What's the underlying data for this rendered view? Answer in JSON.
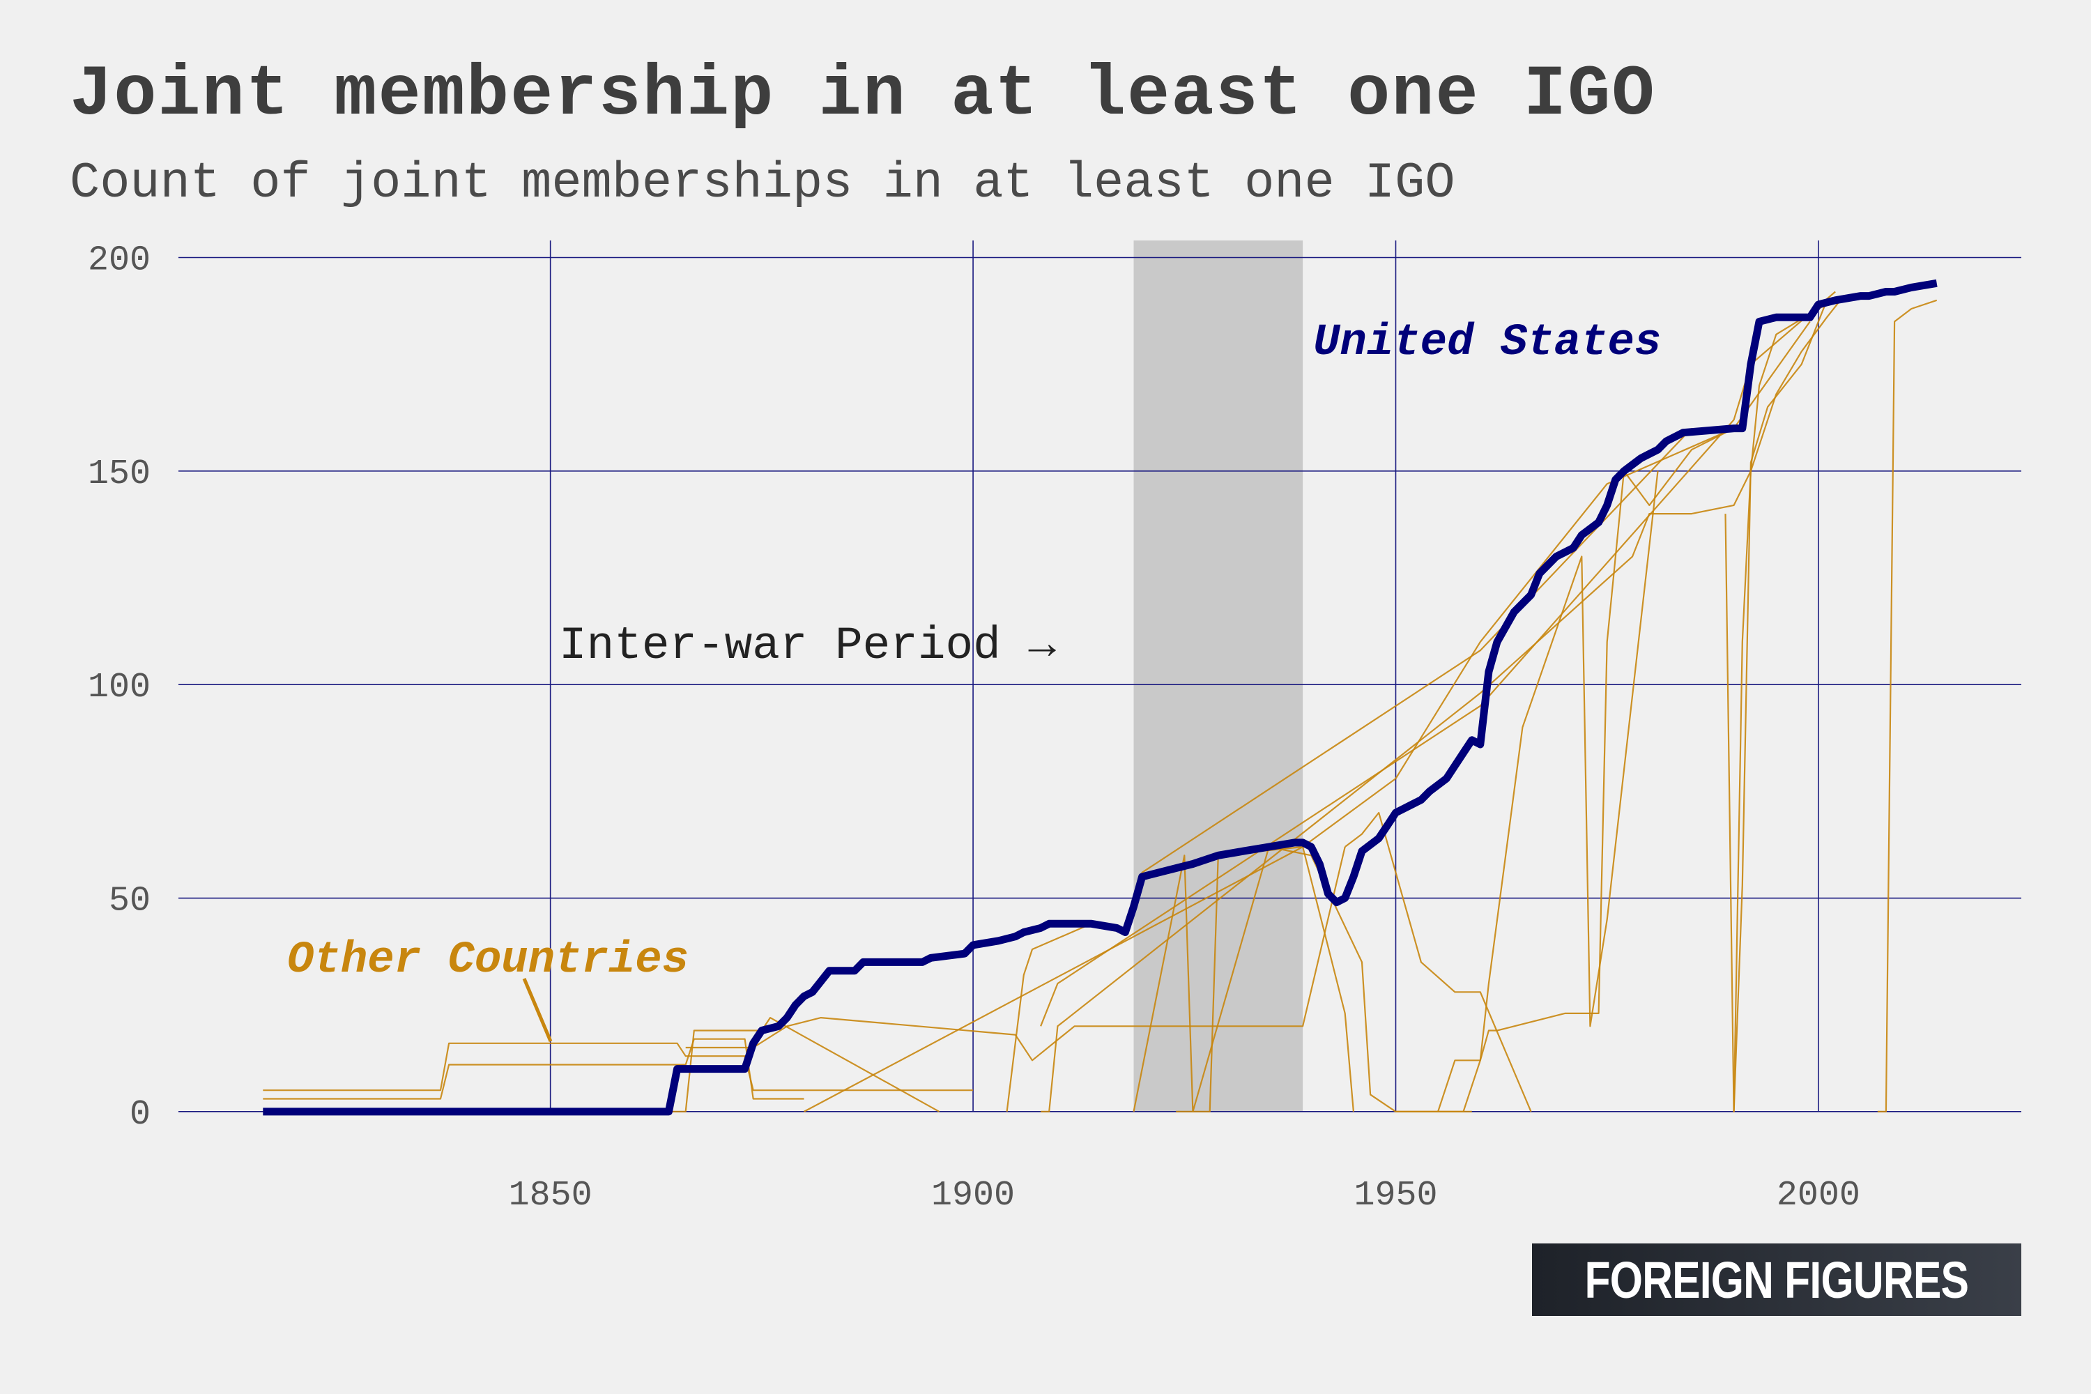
{
  "header": {
    "title": "Joint membership in at least one IGO",
    "subtitle": "Count of joint memberships in at least one IGO"
  },
  "brand": {
    "label": "FOREIGN FIGURES"
  },
  "colors": {
    "us_line": "#00007a",
    "other_lines": "#c8860e",
    "grid": "#1a1a80",
    "shade": "#c9c9c9",
    "background": "#f0f0f0"
  },
  "chart_data": {
    "type": "line",
    "title": "Joint membership in at least one IGO",
    "subtitle": "Count of joint memberships in at least one IGO",
    "xlabel": "",
    "ylabel": "",
    "xlim": [
      1806,
      2024
    ],
    "ylim": [
      -9,
      204
    ],
    "x_ticks": [
      "1850",
      "1900",
      "1950",
      "2000"
    ],
    "y_ticks": [
      "0",
      "50",
      "100",
      "150",
      "200"
    ],
    "grid": true,
    "shaded_region": {
      "x": [
        1919,
        1939
      ],
      "label": "Inter-war Period →"
    },
    "annotations": {
      "us_label": "United States",
      "other_label": "Other Countries"
    },
    "series": [
      {
        "name": "United States",
        "emphasis": true,
        "x": [
          1816,
          1864,
          1865,
          1866,
          1873,
          1874,
          1875,
          1877,
          1878,
          1879,
          1880,
          1881,
          1883,
          1886,
          1887,
          1894,
          1895,
          1899,
          1900,
          1903,
          1905,
          1906,
          1908,
          1909,
          1914,
          1917,
          1918,
          1919,
          1920,
          1924,
          1926,
          1929,
          1932,
          1935,
          1938,
          1939,
          1940,
          1941,
          1942,
          1943,
          1944,
          1945,
          1946,
          1948,
          1949,
          1950,
          1952,
          1953,
          1954,
          1956,
          1958,
          1959,
          1960,
          1961,
          1962,
          1964,
          1966,
          1967,
          1968,
          1969,
          1970,
          1971,
          1972,
          1974,
          1975,
          1976,
          1977,
          1979,
          1980,
          1981,
          1982,
          1984,
          1990,
          1991,
          1992,
          1993,
          1995,
          1998,
          1999,
          2000,
          2002,
          2005,
          2006,
          2008,
          2009,
          2011,
          2014
        ],
        "values": [
          0,
          0,
          10,
          10,
          10,
          16,
          19,
          20,
          22,
          25,
          27,
          28,
          33,
          33,
          35,
          35,
          36,
          37,
          39,
          40,
          41,
          42,
          43,
          44,
          44,
          43,
          42,
          48,
          55,
          57,
          58,
          60,
          61,
          62,
          63,
          63,
          62,
          58,
          51,
          49,
          50,
          55,
          61,
          64,
          67,
          70,
          72,
          73,
          75,
          78,
          84,
          87,
          86,
          103,
          110,
          117,
          121,
          126,
          128,
          130,
          131,
          132,
          135,
          138,
          142,
          148,
          150,
          153,
          154,
          155,
          157,
          159,
          160,
          160,
          175,
          185,
          186,
          186,
          186,
          189,
          190,
          191,
          191,
          192,
          192,
          193,
          194
        ]
      },
      {
        "name": "",
        "x": [
          1816,
          1837,
          1838,
          1865,
          1866,
          1873,
          1874,
          1900
        ],
        "values": [
          5,
          5,
          16,
          16,
          13,
          13,
          5,
          5
        ]
      },
      {
        "name": "",
        "x": [
          1816,
          1837,
          1838,
          1866,
          1867,
          1873,
          1874,
          1880
        ],
        "values": [
          3,
          3,
          11,
          11,
          17,
          17,
          3,
          3
        ]
      },
      {
        "name": "",
        "x": [
          1816,
          1866,
          1867,
          1875,
          1876,
          1896
        ],
        "values": [
          0,
          0,
          19,
          19,
          22,
          0
        ]
      },
      {
        "name": "",
        "x": [
          1866,
          1874,
          1878,
          1882,
          1905,
          1907,
          1912,
          1939,
          1944
        ],
        "values": [
          15,
          15,
          20,
          22,
          18,
          12,
          20,
          20,
          62
        ]
      },
      {
        "name": "",
        "x": [
          1880,
          1939,
          1950,
          1960,
          1975,
          1990,
          1999
        ],
        "values": [
          0,
          62,
          78,
          110,
          147,
          160,
          185
        ]
      },
      {
        "name": "",
        "x": [
          1904,
          1906,
          1907,
          1914,
          1918,
          1920,
          1960,
          1985
        ],
        "values": [
          0,
          32,
          38,
          44,
          43,
          56,
          108,
          160
        ]
      },
      {
        "name": "",
        "x": [
          1908,
          1910,
          1960,
          1990,
          1992,
          2002
        ],
        "values": [
          20,
          30,
          95,
          162,
          175,
          192
        ]
      },
      {
        "name": "",
        "x": [
          1919,
          1925,
          1926,
          1935,
          1940,
          1946,
          1947,
          1950,
          1959
        ],
        "values": [
          0,
          60,
          0,
          62,
          60,
          35,
          4,
          0,
          0
        ]
      },
      {
        "name": "",
        "x": [
          1924,
          1928,
          1929,
          1939,
          1944,
          1945
        ],
        "values": [
          0,
          0,
          60,
          62,
          23,
          0
        ]
      },
      {
        "name": "",
        "x": [
          1944,
          1946,
          1948,
          1953,
          1957,
          1960,
          1966
        ],
        "values": [
          62,
          65,
          70,
          35,
          28,
          28,
          0
        ]
      },
      {
        "name": "",
        "x": [
          1955,
          1957,
          1959,
          1960,
          1961,
          1963,
          1965,
          1972,
          1973,
          1975,
          1981
        ],
        "values": [
          0,
          12,
          12,
          12,
          30,
          60,
          90,
          130,
          20,
          45,
          150
        ]
      },
      {
        "name": "",
        "x": [
          1950,
          1952,
          1958,
          1960,
          1961,
          1962,
          1970,
          1974,
          1975,
          1977,
          1980,
          1985,
          1990
        ],
        "values": [
          0,
          0,
          0,
          12,
          19,
          19,
          23,
          23,
          110,
          150,
          142,
          155,
          160
        ]
      },
      {
        "name": "",
        "x": [
          1990,
          1991,
          1992,
          1993,
          1995,
          2000,
          2002
        ],
        "values": [
          0,
          110,
          150,
          170,
          182,
          188,
          190
        ]
      },
      {
        "name": "",
        "x": [
          1989,
          1990,
          1991,
          1992,
          1994,
          1998,
          2001
        ],
        "values": [
          140,
          0,
          53,
          152,
          165,
          175,
          190
        ]
      },
      {
        "name": "",
        "x": [
          1908,
          1909,
          1910,
          1960,
          1978,
          1980,
          1985,
          1990,
          1992,
          1995,
          1998,
          2001,
          2003
        ],
        "values": [
          0,
          0,
          20,
          98,
          130,
          140,
          140,
          142,
          150,
          168,
          178,
          186,
          191
        ]
      },
      {
        "name": "",
        "x": [
          2007,
          2008,
          2009,
          2011,
          2014
        ],
        "values": [
          0,
          0,
          185,
          188,
          190
        ]
      }
    ]
  }
}
